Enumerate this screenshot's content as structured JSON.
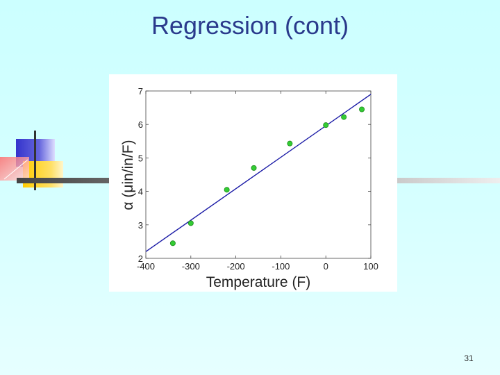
{
  "slide": {
    "title": "Regression (cont)",
    "number": "31"
  },
  "colors": {
    "background": "#ccffff",
    "title": "#2a3a8c",
    "regression_line": "#1a1aa6",
    "points": "#33cc33",
    "deco_blue": "#3333cc",
    "deco_yellow": "#ffcc00",
    "deco_red": "#ff6666"
  },
  "chart_data": {
    "type": "scatter",
    "title": "",
    "xlabel": "Temperature (F)",
    "ylabel": "α (μin/in/F)",
    "xlim": [
      -400,
      100
    ],
    "ylim": [
      2,
      7
    ],
    "xticks": [
      -400,
      -300,
      -200,
      -100,
      0,
      100
    ],
    "yticks": [
      2,
      3,
      4,
      5,
      6,
      7
    ],
    "grid": false,
    "series": [
      {
        "kind": "points",
        "x": [
          -340,
          -300,
          -220,
          -160,
          -80,
          0,
          40,
          80
        ],
        "y": [
          2.45,
          3.05,
          4.05,
          4.7,
          5.43,
          5.98,
          6.22,
          6.45
        ]
      },
      {
        "kind": "line",
        "x": [
          -400,
          100
        ],
        "y": [
          2.2,
          6.9
        ]
      }
    ]
  }
}
